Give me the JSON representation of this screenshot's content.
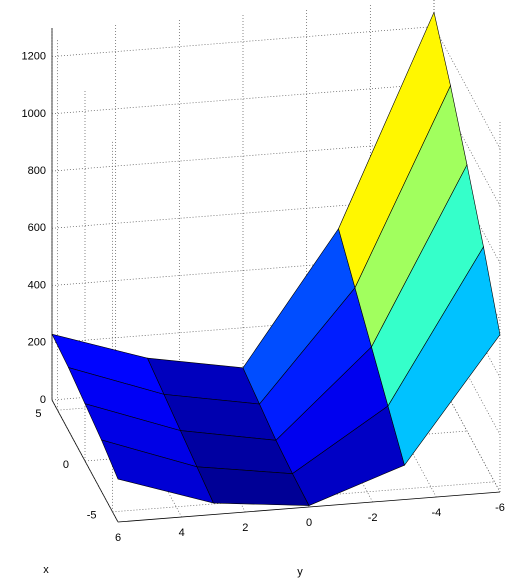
{
  "chart_data": {
    "type": "surface",
    "x_label": "x",
    "y_label": "y",
    "x": [
      -6,
      -3,
      0,
      3,
      6
    ],
    "y": [
      6,
      3,
      0,
      -3,
      -6
    ],
    "z": [
      [
        150,
        40,
        5,
        120,
        550
      ],
      [
        180,
        60,
        10,
        220,
        750
      ],
      [
        200,
        80,
        20,
        320,
        930
      ],
      [
        220,
        100,
        40,
        420,
        1100
      ],
      [
        230,
        120,
        60,
        520,
        1250
      ]
    ],
    "xlim": [
      -6,
      6
    ],
    "ylim": [
      -6,
      6
    ],
    "zlim": [
      0,
      1300
    ],
    "xticks": [
      -5,
      0,
      5
    ],
    "yticks": [
      6,
      4,
      2,
      0,
      -2,
      -4,
      -6
    ],
    "zticks": [
      0,
      200,
      400,
      600,
      800,
      1000,
      1200
    ],
    "grid": true,
    "colormap": "jet"
  }
}
